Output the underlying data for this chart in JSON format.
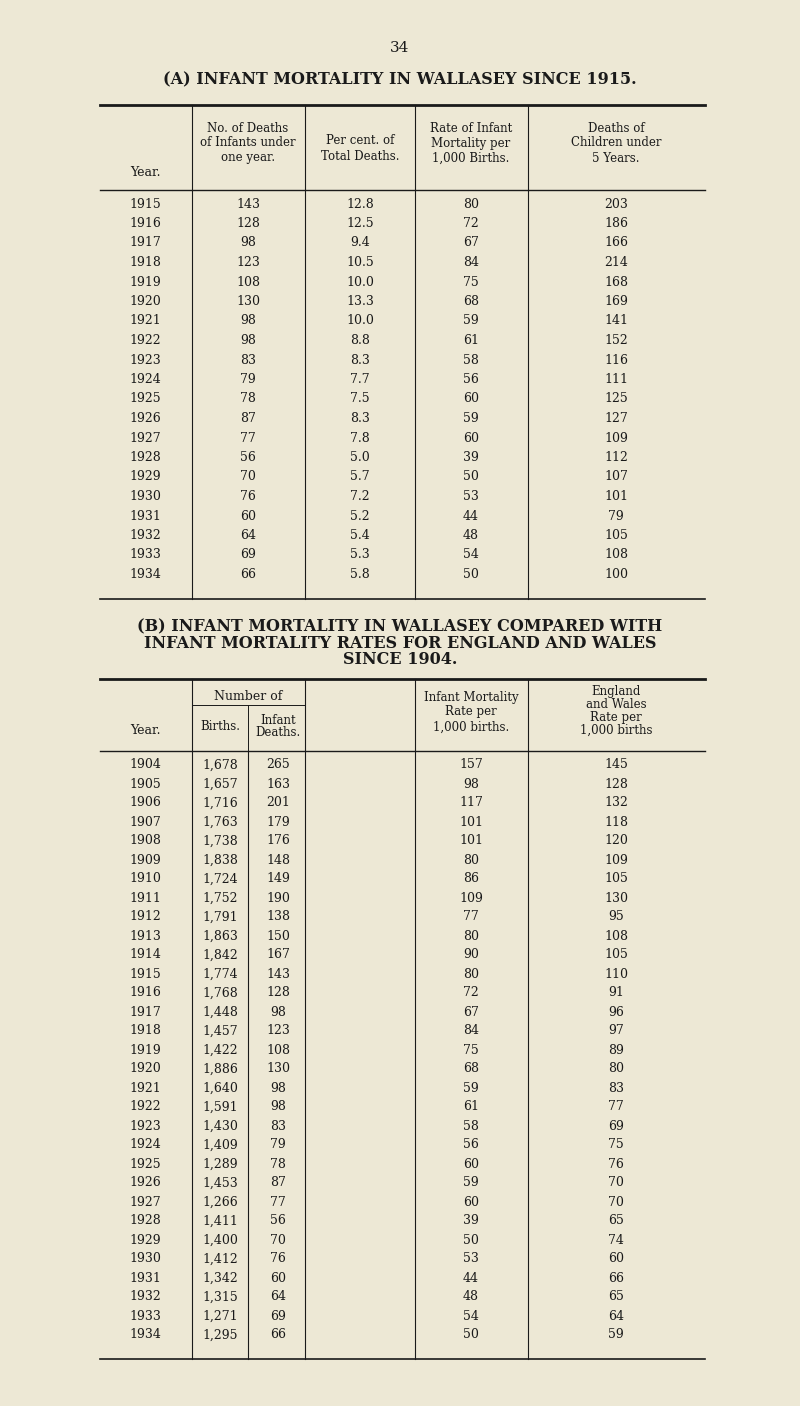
{
  "page_number": "34",
  "bg_color": "#ede8d5",
  "text_color": "#1a1a1a",
  "title_a": "(A) INFANT MORTALITY IN WALLASEY SINCE 1915.",
  "title_b_line1": "(B) INFANT MORTALITY IN WALLASEY COMPARED WITH",
  "title_b_line2": "INFANT MORTALITY RATES FOR ENGLAND AND WALES",
  "title_b_line3": "SINCE 1904.",
  "table_a_data": [
    [
      "1915",
      "143",
      "12.8",
      "80",
      "203"
    ],
    [
      "1916",
      "128",
      "12.5",
      "72",
      "186"
    ],
    [
      "1917",
      "98",
      "9.4",
      "67",
      "166"
    ],
    [
      "1918",
      "123",
      "10.5",
      "84",
      "214"
    ],
    [
      "1919",
      "108",
      "10.0",
      "75",
      "168"
    ],
    [
      "1920",
      "130",
      "13.3",
      "68",
      "169"
    ],
    [
      "1921",
      "98",
      "10.0",
      "59",
      "141"
    ],
    [
      "1922",
      "98",
      "8.8",
      "61",
      "152"
    ],
    [
      "1923",
      "83",
      "8.3",
      "58",
      "116"
    ],
    [
      "1924",
      "79",
      "7.7",
      "56",
      "111"
    ],
    [
      "1925",
      "78",
      "7.5",
      "60",
      "125"
    ],
    [
      "1926",
      "87",
      "8.3",
      "59",
      "127"
    ],
    [
      "1927",
      "77",
      "7.8",
      "60",
      "109"
    ],
    [
      "1928",
      "56",
      "5.0",
      "39",
      "112"
    ],
    [
      "1929",
      "70",
      "5.7",
      "50",
      "107"
    ],
    [
      "1930",
      "76",
      "7.2",
      "53",
      "101"
    ],
    [
      "1931",
      "60",
      "5.2",
      "44",
      "79"
    ],
    [
      "1932",
      "64",
      "5.4",
      "48",
      "105"
    ],
    [
      "1933",
      "69",
      "5.3",
      "54",
      "108"
    ],
    [
      "1934",
      "66",
      "5.8",
      "50",
      "100"
    ]
  ],
  "table_b_data": [
    [
      "1904",
      "1,678",
      "265",
      "157",
      "145"
    ],
    [
      "1905",
      "1,657",
      "163",
      "98",
      "128"
    ],
    [
      "1906",
      "1,716",
      "201",
      "117",
      "132"
    ],
    [
      "1907",
      "1,763",
      "179",
      "101",
      "118"
    ],
    [
      "1908",
      "1,738",
      "176",
      "101",
      "120"
    ],
    [
      "1909",
      "1,838",
      "148",
      "80",
      "109"
    ],
    [
      "1910",
      "1,724",
      "149",
      "86",
      "105"
    ],
    [
      "1911",
      "1,752",
      "190",
      "109",
      "130"
    ],
    [
      "1912",
      "1,791",
      "138",
      "77",
      "95"
    ],
    [
      "1913",
      "1,863",
      "150",
      "80",
      "108"
    ],
    [
      "1914",
      "1,842",
      "167",
      "90",
      "105"
    ],
    [
      "1915",
      "1,774",
      "143",
      "80",
      "110"
    ],
    [
      "1916",
      "1,768",
      "128",
      "72",
      "91"
    ],
    [
      "1917",
      "1,448",
      "98",
      "67",
      "96"
    ],
    [
      "1918",
      "1,457",
      "123",
      "84",
      "97"
    ],
    [
      "1919",
      "1,422",
      "108",
      "75",
      "89"
    ],
    [
      "1920",
      "1,886",
      "130",
      "68",
      "80"
    ],
    [
      "1921",
      "1,640",
      "98",
      "59",
      "83"
    ],
    [
      "1922",
      "1,591",
      "98",
      "61",
      "77"
    ],
    [
      "1923",
      "1,430",
      "83",
      "58",
      "69"
    ],
    [
      "1924",
      "1,409",
      "79",
      "56",
      "75"
    ],
    [
      "1925",
      "1,289",
      "78",
      "60",
      "76"
    ],
    [
      "1926",
      "1,453",
      "87",
      "59",
      "70"
    ],
    [
      "1927",
      "1,266",
      "77",
      "60",
      "70"
    ],
    [
      "1928",
      "1,411",
      "56",
      "39",
      "65"
    ],
    [
      "1929",
      "1,400",
      "70",
      "50",
      "74"
    ],
    [
      "1930",
      "1,412",
      "76",
      "53",
      "60"
    ],
    [
      "1931",
      "1,342",
      "60",
      "44",
      "66"
    ],
    [
      "1932",
      "1,315",
      "64",
      "48",
      "65"
    ],
    [
      "1933",
      "1,271",
      "69",
      "54",
      "64"
    ],
    [
      "1934",
      "1,295",
      "66",
      "50",
      "59"
    ]
  ]
}
